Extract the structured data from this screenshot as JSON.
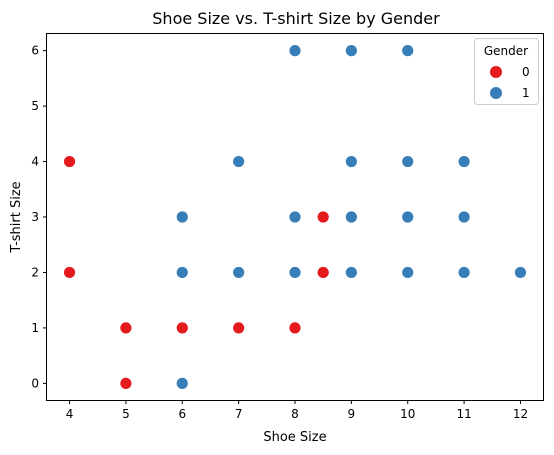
{
  "chart_data": {
    "type": "scatter",
    "title": "Shoe Size vs. T-shirt Size by Gender",
    "xlabel": "Shoe Size",
    "ylabel": "T-shirt Size",
    "xlim": [
      3.6,
      12.4
    ],
    "ylim": [
      -0.3,
      6.3
    ],
    "xticks": [
      4,
      5,
      6,
      7,
      8,
      9,
      10,
      11,
      12
    ],
    "yticks": [
      0,
      1,
      2,
      3,
      4,
      5,
      6
    ],
    "grid": false,
    "legend": {
      "title": "Gender",
      "placement": "top-right"
    },
    "series": [
      {
        "name": "0",
        "color": "#e41a1c",
        "points": [
          {
            "x": 4,
            "y": 4
          },
          {
            "x": 4,
            "y": 2
          },
          {
            "x": 5,
            "y": 1
          },
          {
            "x": 5,
            "y": 0
          },
          {
            "x": 6,
            "y": 1
          },
          {
            "x": 7,
            "y": 1
          },
          {
            "x": 8,
            "y": 1
          },
          {
            "x": 8.5,
            "y": 3
          },
          {
            "x": 8.5,
            "y": 2
          }
        ]
      },
      {
        "name": "1",
        "color": "#377eb8",
        "points": [
          {
            "x": 6,
            "y": 3
          },
          {
            "x": 6,
            "y": 2
          },
          {
            "x": 6,
            "y": 0
          },
          {
            "x": 7,
            "y": 4
          },
          {
            "x": 7,
            "y": 2
          },
          {
            "x": 8,
            "y": 6
          },
          {
            "x": 8,
            "y": 3
          },
          {
            "x": 8,
            "y": 2
          },
          {
            "x": 9,
            "y": 6
          },
          {
            "x": 9,
            "y": 4
          },
          {
            "x": 9,
            "y": 3
          },
          {
            "x": 9,
            "y": 2
          },
          {
            "x": 10,
            "y": 6
          },
          {
            "x": 10,
            "y": 4
          },
          {
            "x": 10,
            "y": 3
          },
          {
            "x": 10,
            "y": 2
          },
          {
            "x": 11,
            "y": 4
          },
          {
            "x": 11,
            "y": 3
          },
          {
            "x": 11,
            "y": 2
          },
          {
            "x": 12,
            "y": 2
          }
        ]
      }
    ]
  }
}
